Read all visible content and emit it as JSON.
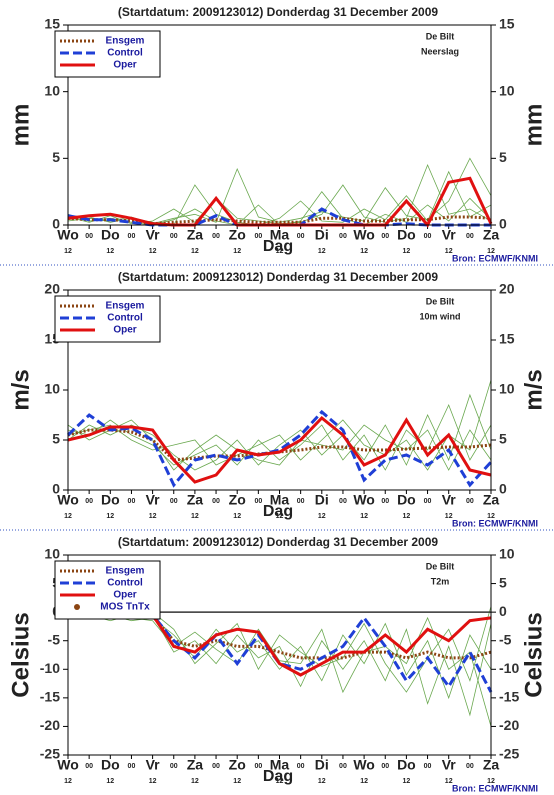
{
  "chart_data": [
    {
      "type": "line",
      "title": "(Startdatum: 2009123012)   Donderdag 31 December  2009",
      "location": "De Bilt",
      "variable": "Neerslag",
      "ylabel": "mm",
      "xlabel": "Dag",
      "source": "Bron: ECMWF/KNMI",
      "categories": [
        "Wo",
        "00",
        "Do",
        "00",
        "Vr",
        "00",
        "Za",
        "00",
        "Zo",
        "00",
        "Ma",
        "00",
        "Di",
        "00",
        "Wo",
        "00",
        "Do",
        "00",
        "Vr",
        "00",
        "Za"
      ],
      "sublabels": [
        "12",
        null,
        "12",
        null,
        "12",
        null,
        "12",
        null,
        "12",
        null,
        "12",
        null,
        "12",
        null,
        "12",
        null,
        "12",
        null,
        "12",
        null,
        "12"
      ],
      "ylim": [
        0,
        15
      ],
      "yticks": [
        0,
        5,
        10,
        15
      ],
      "member_color": "#6aa84f",
      "members": [
        [
          0.8,
          0.3,
          0.5,
          0.2,
          0,
          0.4,
          1.2,
          0.3,
          0,
          1.5,
          0,
          0.3,
          2.5,
          0.5,
          0,
          0.8,
          0.2,
          1.5,
          0.3,
          2.0,
          0.4
        ],
        [
          0.4,
          0.6,
          0.2,
          0.5,
          0.2,
          0,
          3.0,
          0.8,
          0.2,
          0,
          0.5,
          1.8,
          0.3,
          0.2,
          1.2,
          0.4,
          2.2,
          0.3,
          4.0,
          0.6,
          1.5
        ],
        [
          0.6,
          0.2,
          0.7,
          0.1,
          0.3,
          1.2,
          0.2,
          2.0,
          0.5,
          0.3,
          0.1,
          0.2,
          0.8,
          3.0,
          0.6,
          0.2,
          0.5,
          4.5,
          0.8,
          1.2,
          0.3
        ],
        [
          0.3,
          0.5,
          0.3,
          0.6,
          0.1,
          0.5,
          0.8,
          0.2,
          4.2,
          0.6,
          0.2,
          0.5,
          1.0,
          0.6,
          0.3,
          2.8,
          0.7,
          0.4,
          1.8,
          5.0,
          2.2
        ]
      ],
      "series": [
        {
          "name": "Ensgem",
          "color": "#8b4513",
          "style": "dotted",
          "values": [
            0.5,
            0.4,
            0.4,
            0.3,
            0.1,
            0.2,
            0.3,
            0.4,
            0.3,
            0.2,
            0.2,
            0.2,
            0.5,
            0.5,
            0.3,
            0.3,
            0.4,
            0.4,
            0.6,
            0.6,
            0.5
          ]
        },
        {
          "name": "Control",
          "color": "#1f3fd6",
          "style": "dashed",
          "values": [
            0.7,
            0.4,
            0.4,
            0.2,
            0,
            0,
            0,
            0.7,
            0,
            0,
            0,
            0,
            1.2,
            0.4,
            0,
            0,
            0.1,
            0,
            0,
            0,
            0
          ]
        },
        {
          "name": "Oper",
          "color": "#e01010",
          "style": "solid",
          "values": [
            0.5,
            0.7,
            0.8,
            0.5,
            0.1,
            0,
            0,
            2.0,
            0,
            0,
            0,
            0,
            0,
            0,
            0,
            0,
            1.8,
            0,
            3.2,
            3.5,
            0.1
          ]
        }
      ]
    },
    {
      "type": "line",
      "title": "(Startdatum: 2009123012)   Donderdag 31 December  2009",
      "location": "De Bilt",
      "variable": "10m wind",
      "ylabel": "m/s",
      "xlabel": "Dag",
      "source": "Bron: ECMWF/KNMI",
      "categories": [
        "Wo",
        "00",
        "Do",
        "00",
        "Vr",
        "00",
        "Za",
        "00",
        "Zo",
        "00",
        "Ma",
        "00",
        "Di",
        "00",
        "Wo",
        "00",
        "Do",
        "00",
        "Vr",
        "00",
        "Za"
      ],
      "sublabels": [
        "12",
        null,
        "12",
        null,
        "12",
        null,
        "12",
        null,
        "12",
        null,
        "12",
        null,
        "12",
        null,
        "12",
        null,
        "12",
        null,
        "12",
        null,
        "12"
      ],
      "ylim": [
        0,
        20
      ],
      "yticks": [
        0,
        5,
        10,
        15,
        20
      ],
      "member_color": "#6aa84f",
      "members": [
        [
          6.0,
          5.5,
          7.0,
          5.5,
          4.5,
          2.5,
          3.5,
          4.5,
          2.5,
          5.0,
          3.0,
          4.5,
          6.5,
          3.0,
          5.5,
          2.0,
          6.0,
          4.0,
          8.5,
          3.0,
          6.5
        ],
        [
          5.0,
          6.5,
          5.5,
          6.5,
          5.5,
          3.5,
          2.0,
          3.0,
          5.0,
          2.5,
          4.5,
          6.0,
          3.5,
          5.5,
          3.0,
          6.5,
          2.5,
          7.5,
          3.0,
          9.5,
          4.0
        ],
        [
          5.5,
          6.0,
          6.5,
          5.0,
          4.0,
          4.5,
          5.0,
          2.5,
          3.5,
          4.5,
          5.5,
          3.0,
          5.0,
          7.0,
          4.5,
          3.5,
          5.0,
          2.0,
          5.5,
          4.0,
          11.0
        ],
        [
          6.5,
          5.0,
          6.0,
          7.0,
          5.0,
          2.0,
          4.0,
          5.5,
          4.0,
          3.0,
          2.5,
          5.0,
          4.5,
          4.0,
          6.5,
          5.0,
          4.0,
          6.0,
          2.0,
          6.0,
          3.0
        ]
      ],
      "series": [
        {
          "name": "Ensgem",
          "color": "#8b4513",
          "style": "dotted",
          "values": [
            5.5,
            6.0,
            6.0,
            5.8,
            5.0,
            3.0,
            3.2,
            3.4,
            3.4,
            3.6,
            3.8,
            4.0,
            4.3,
            4.3,
            4.0,
            4.0,
            4.1,
            4.2,
            4.3,
            4.3,
            4.5
          ]
        },
        {
          "name": "Control",
          "color": "#1f3fd6",
          "style": "dashed",
          "values": [
            5.5,
            7.5,
            6.0,
            6.2,
            5.0,
            0.5,
            3.0,
            3.5,
            3.0,
            3.5,
            4.0,
            5.5,
            7.8,
            6.0,
            1.0,
            3.0,
            3.5,
            2.5,
            4.0,
            0.5,
            2.8
          ]
        },
        {
          "name": "Oper",
          "color": "#e01010",
          "style": "solid",
          "values": [
            5.0,
            5.5,
            6.3,
            6.3,
            6.0,
            3.0,
            0.8,
            1.5,
            4.0,
            3.5,
            3.8,
            5.0,
            7.2,
            5.5,
            2.5,
            3.5,
            7.0,
            3.5,
            5.5,
            2.0,
            1.5
          ]
        }
      ]
    },
    {
      "type": "line",
      "title": "(Startdatum: 2009123012)   Donderdag 31 December  2009",
      "location": "De Bilt",
      "variable": "T2m",
      "ylabel": "Celsius",
      "xlabel": "Dag",
      "source": "Bron: ECMWF/KNMI",
      "categories": [
        "Wo",
        "00",
        "Do",
        "00",
        "Vr",
        "00",
        "Za",
        "00",
        "Zo",
        "00",
        "Ma",
        "00",
        "Di",
        "00",
        "Wo",
        "00",
        "Do",
        "00",
        "Vr",
        "00",
        "Za"
      ],
      "sublabels": [
        "12",
        null,
        "12",
        null,
        "12",
        null,
        "12",
        null,
        "12",
        null,
        "12",
        null,
        "12",
        null,
        "12",
        null,
        "12",
        null,
        "12",
        null,
        "12"
      ],
      "ylim": [
        -25,
        10
      ],
      "yticks": [
        -25,
        -20,
        -15,
        -10,
        -5,
        0,
        5,
        10
      ],
      "hline": 0,
      "member_color": "#6aa84f",
      "extra_legend": {
        "name": "MOS TnTx",
        "color": "#8b4513"
      },
      "members": [
        [
          -0.5,
          -1.0,
          -0.5,
          -1.5,
          -1.0,
          -4.0,
          -8.0,
          -3.0,
          -7.0,
          -5.0,
          -10.0,
          -6.0,
          -12.0,
          -4.0,
          -9.0,
          -2.0,
          -11.0,
          -5.0,
          -15.0,
          -4.0,
          -10.0
        ],
        [
          -1.0,
          -0.5,
          -1.5,
          -0.5,
          -0.5,
          -7.0,
          -5.0,
          -9.0,
          -4.0,
          -8.0,
          -6.0,
          -13.0,
          -5.0,
          -10.0,
          -5.0,
          -12.0,
          -3.0,
          -16.0,
          -6.0,
          -18.0,
          -2.0
        ],
        [
          -0.3,
          -1.2,
          -0.8,
          -1.0,
          -1.5,
          -6.0,
          -3.5,
          -6.5,
          -9.0,
          -3.0,
          -8.5,
          -9.0,
          -3.0,
          -14.0,
          -7.0,
          -6.0,
          -9.0,
          -1.0,
          -10.0,
          -7.0,
          -20.0
        ],
        [
          -0.8,
          -0.7,
          -1.0,
          -1.2,
          0.0,
          -3.0,
          -9.0,
          -5.5,
          -2.0,
          -10.0,
          -4.0,
          -7.0,
          -9.5,
          -8.0,
          -2.0,
          -9.0,
          -14.0,
          -8.0,
          -3.0,
          -12.0,
          1.0
        ]
      ],
      "series": [
        {
          "name": "Ensgem",
          "color": "#8b4513",
          "style": "dotted",
          "values": [
            -0.5,
            -0.8,
            -0.8,
            -1.0,
            -0.7,
            -5,
            -6,
            -5,
            -6,
            -6,
            -7,
            -8,
            -8,
            -8,
            -7,
            -7,
            -8,
            -7,
            -8,
            -8,
            -7
          ]
        },
        {
          "name": "Control",
          "color": "#1f3fd6",
          "style": "dashed",
          "values": [
            -0.5,
            -0.5,
            -1.0,
            -1.0,
            -0.5,
            -5,
            -8,
            -4,
            -9,
            -4,
            -9,
            -10,
            -8,
            -6,
            -1,
            -6,
            -12,
            -8,
            -13,
            -7,
            -14
          ]
        },
        {
          "name": "Oper",
          "color": "#e01010",
          "style": "solid",
          "values": [
            -0.5,
            -1.0,
            0,
            -1.0,
            -0.5,
            -6,
            -7,
            -4,
            -3,
            -3.5,
            -9,
            -11,
            -9,
            -7,
            -7,
            -4,
            -7,
            -3,
            -5,
            -1.5,
            -1
          ]
        }
      ]
    }
  ]
}
